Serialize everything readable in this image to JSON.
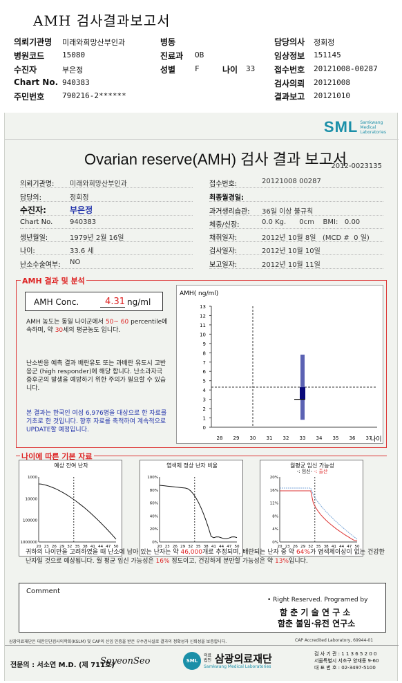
{
  "top": {
    "title": "AMH 검사결과보고서",
    "rows": [
      [
        {
          "k": "의뢰기관명",
          "v": "미래와희망산부인과"
        },
        {
          "k": "병동",
          "v": ""
        },
        {
          "k": "담당의사",
          "v": "정회정"
        }
      ],
      [
        {
          "k": "병원코드",
          "v": "15080"
        },
        {
          "k": "진료과",
          "v": "OB"
        },
        {
          "k": "임상정보",
          "v": "151145"
        }
      ],
      [
        {
          "k": "수진자",
          "v": "부은정"
        },
        {
          "k": "성별",
          "v": "F"
        },
        {
          "k": "접수번호",
          "v": "20121008-00287"
        }
      ],
      [
        {
          "k": "Chart No.",
          "v": "940383"
        },
        {
          "k": "",
          "v": ""
        },
        {
          "k": "검사의뢰",
          "v": "20121008"
        }
      ],
      [
        {
          "k": "주민번호",
          "v": "790216-2******"
        },
        {
          "k": "",
          "v": ""
        },
        {
          "k": "결과보고",
          "v": "20121010"
        }
      ]
    ],
    "age_label": "나이",
    "age_value": "33"
  },
  "report": {
    "logo": "SML",
    "logo_sub": [
      "Samkwang",
      "Medical",
      "Laboratories"
    ],
    "title": "Ovarian reserve(AMH) 검사 결과 보고서",
    "report_no": "2012-0023135",
    "left_info": [
      {
        "k": "의뢰기관명:",
        "v": "미래와희망산부인과"
      },
      {
        "k": "담당의:",
        "v": "정회정"
      },
      {
        "k": "수진자:",
        "v": "부은정"
      },
      {
        "k": "Chart No.",
        "v": "940383"
      },
      {
        "k": "생년월일:",
        "v": "1979년 2월 16일"
      },
      {
        "k": "나이:",
        "v": "33.6 세"
      },
      {
        "k": "난소수술여부:",
        "v": "NO"
      }
    ],
    "right_info": [
      {
        "k": "접수번호:",
        "v": "20121008 00287"
      },
      {
        "k": "최종월경일:",
        "v": ""
      },
      {
        "k": "과거생리습관:",
        "v": "36일 이상 불규칙"
      },
      {
        "k": "체중/신장:",
        "v": "0.0 Kg.      0cm    BMI:   0.00"
      },
      {
        "k": "채취일자:",
        "v": "2012년 10월 8일   (MCD #  0 일)"
      },
      {
        "k": "검사일자:",
        "v": "2012년 10월 10일"
      },
      {
        "k": "보고일자:",
        "v": "2012년 10월 11일"
      }
    ],
    "amh_section_title": "AMH 결과 및 분석",
    "amh_label": "AMH Conc.",
    "amh_value": "4.31",
    "amh_unit": "ng/ml",
    "para1": [
      "AMH 농도는 동일 나이군에서 ",
      "50~ 60",
      " percentile에 속하며, 약 ",
      "30",
      "세의 평균농도 입니다."
    ],
    "para2": "난소반응 예측 결과 배란유도 또는 과배란 유도시 고반응군 (high responder)에 해당 합니다. 난소과자극 증후군의 발생을 예방하기 위한 주의가 필요할 수 있습니다.",
    "para3": "본 결과는 한국인 여성 6,976명을 대상으로 한 자료를 기초로 한 것입니다. 향후 자료를 축적하여 계속적으로 UPDATE할 예정입니다.",
    "basic_section_title": "나이에 따른 기본 자료",
    "graph_titles": [
      "예상 잔여 난자",
      "염색체 정상 난자 비율",
      "월평균 임신 가능성"
    ],
    "graph3_legend": [
      "-: 임신-",
      "-: 출산"
    ],
    "summary": [
      "귀하의 나이만을 고려하였을 때 난소에 남아 있는 난자는 약 ",
      "46,000",
      "개로 추정되며, 배란되는 난자 중 약 ",
      "64%",
      "가 염색체이상이 없는 건강한 난자일 것으로 예상됩니다. 월 평균 임신 가능성은 ",
      "16%",
      " 정도이고, 건강하게 분만할 가능성은 약 ",
      "13%",
      "입니다."
    ],
    "comment_label": "Comment",
    "rights": "• Right Reserved. Programed by",
    "lab1": "함 춘 기 술 연 구 소",
    "lab2": "함춘 불임·유전 연구소",
    "cert_note": "삼광의료재단은 대한진단검사의학회(KSLM) 및 CAP의 신임 인증을 받은 우수검사실로 결과의 정확성과 신뢰성을 보증합니다.",
    "cap": "CAP Accredited Laboratory, 69944-01",
    "doctor": "전문의 : 서소연 M.D. (제 711호)",
    "signature": "SoyeonSeo",
    "foundation": "삼광의료재단",
    "foundation_sub": "Samkwang Medical Laboratories",
    "foundation_tag": "의료법인",
    "contact": [
      "검 사 기 관 : 1 1 3 6 5 2 0 0",
      "서울특별시  서초구  양재동  9-60",
      "대 표 번 호 : 02-3497-5100"
    ]
  },
  "chart_data": [
    {
      "type": "scatter",
      "title": "",
      "ylabel": "AMH( ng/ml)",
      "xlabel": "나이",
      "x_ticks": [
        28,
        29,
        30,
        31,
        32,
        33,
        34,
        35,
        36,
        37
      ],
      "y_ticks": [
        0,
        1,
        2,
        3,
        4,
        5,
        6,
        7,
        8,
        9,
        10,
        11,
        12,
        13
      ],
      "xlim": [
        27.5,
        37.5
      ],
      "ylim": [
        0,
        13
      ],
      "reference_x": 30,
      "reference_y": 4.31,
      "range_bar": {
        "x": 33,
        "low": 0.8,
        "high": 7.8,
        "box_low": 3.0,
        "box_high": 4.3
      },
      "point": {
        "x": 33.6,
        "y": 4.31
      }
    },
    {
      "type": "line",
      "title": "예상 잔여 난자",
      "x_ticks": [
        20,
        23,
        26,
        29,
        32,
        35,
        38,
        41,
        44,
        47,
        50
      ],
      "y_ticks": [
        "1000000",
        "100000",
        "10000",
        "1000"
      ],
      "y_scale": "log",
      "marker_x": 33.6
    },
    {
      "type": "line",
      "title": "염색체 정상 난자 비율",
      "x_ticks": [
        20,
        23,
        26,
        29,
        32,
        35,
        38,
        41,
        44,
        47,
        50
      ],
      "y_ticks": [
        "0%",
        "20%",
        "40%",
        "60%",
        "80%",
        "100%"
      ],
      "marker_x": 33.6
    },
    {
      "type": "line",
      "title": "월평균 임신 가능성",
      "x_ticks": [
        20,
        23,
        26,
        29,
        32,
        35,
        38,
        41,
        44,
        47,
        50
      ],
      "y_ticks": [
        "0%",
        "4%",
        "8%",
        "12%",
        "16%",
        "20%"
      ],
      "marker_x": 33.6,
      "series": [
        {
          "name": "-: 임신-"
        },
        {
          "name": "-: 출산"
        }
      ]
    }
  ]
}
